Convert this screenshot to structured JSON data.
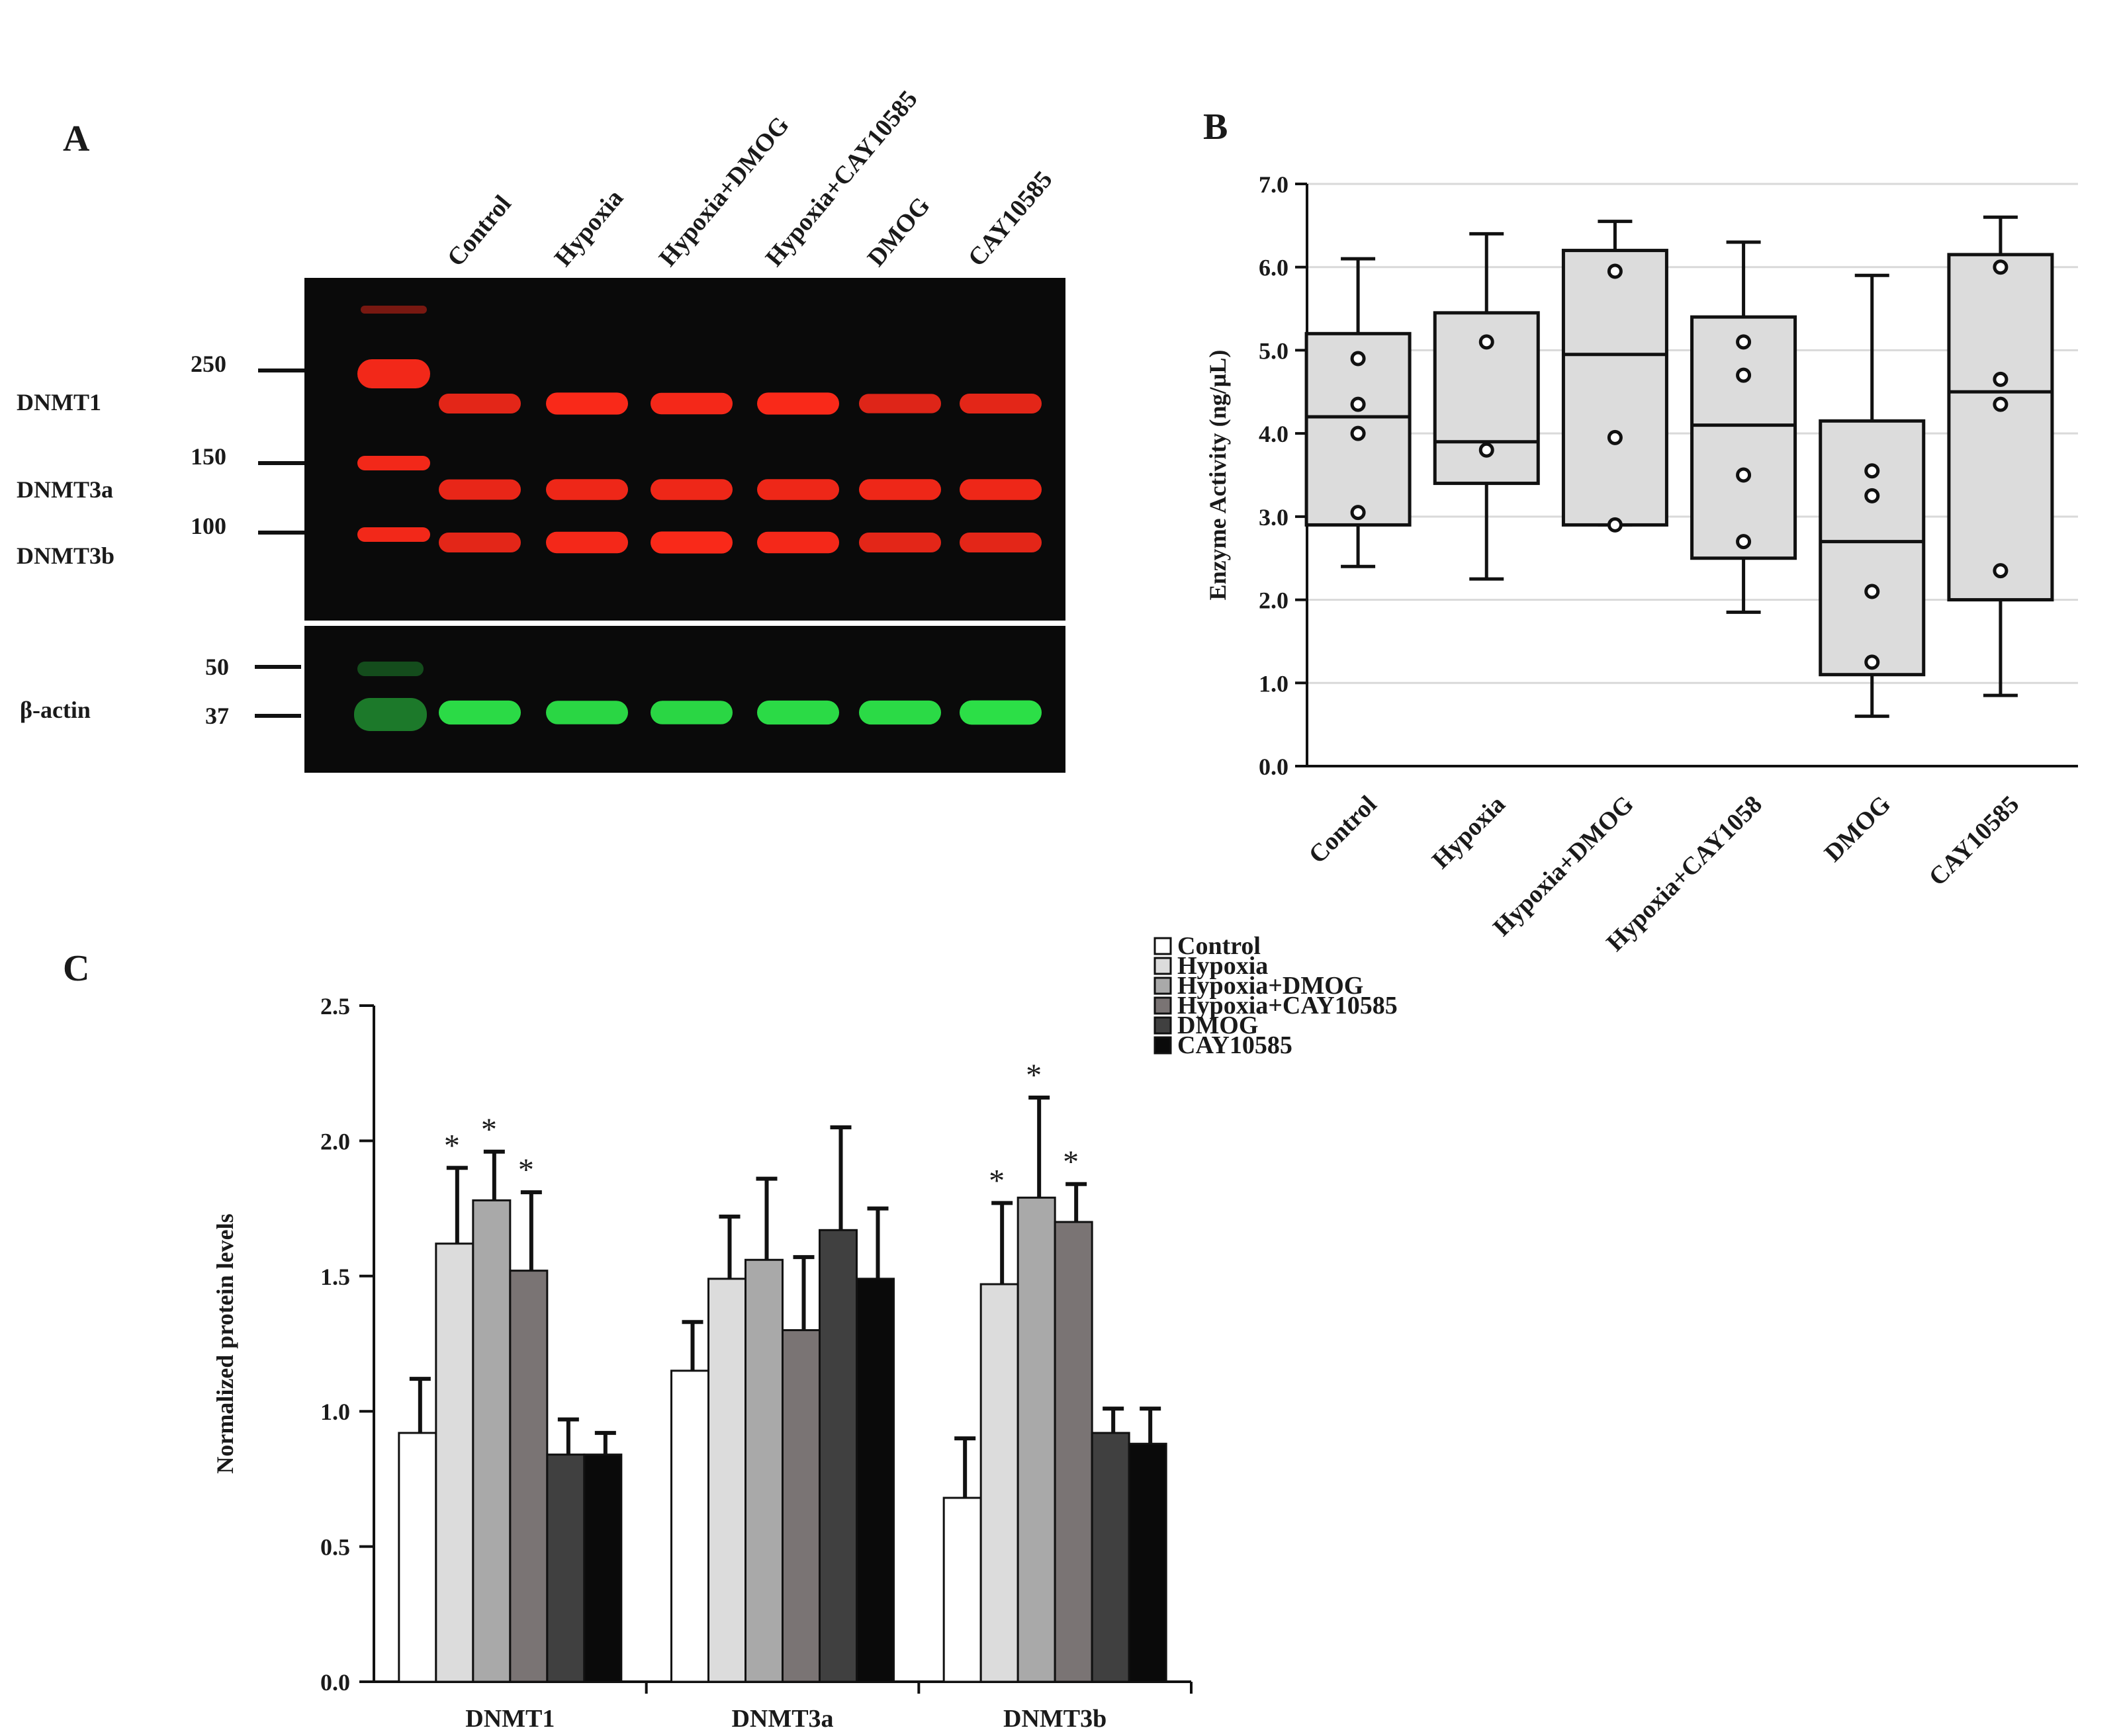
{
  "panels": {
    "a": "A",
    "b": "B",
    "c": "C"
  },
  "western_blot": {
    "lanes": [
      "Control",
      "Hypoxia",
      "Hypoxia+DMOG",
      "Hypoxia+CAY10585",
      "DMOG",
      "CAY10585"
    ],
    "proteins": [
      "DNMT1",
      "DNMT3a",
      "DNMT3b"
    ],
    "loading_control": "β-actin",
    "markers_top": [
      "250",
      "150",
      "100"
    ],
    "markers_bottom": [
      "50",
      "37"
    ],
    "band_intensity_top": [
      [
        0.75,
        0.95,
        0.9,
        0.95,
        0.7,
        0.75
      ],
      [
        0.8,
        0.85,
        0.85,
        0.85,
        0.85,
        0.85
      ],
      [
        0.75,
        0.9,
        0.95,
        0.9,
        0.75,
        0.75
      ]
    ],
    "band_intensity_actin": [
      0.85,
      0.8,
      0.8,
      0.85,
      0.85,
      0.9
    ],
    "colors": {
      "red": "#ff2a1a",
      "green": "#2ee84a",
      "background": "#0a0a0a"
    }
  },
  "chart_data": [
    {
      "type": "box",
      "panel": "B",
      "ylabel": "Enzyme Activity (ng/µL)",
      "ylim": [
        0,
        7
      ],
      "yticks": [
        "0.0",
        "1.0",
        "2.0",
        "3.0",
        "4.0",
        "5.0",
        "6.0",
        "7.0"
      ],
      "grid": true,
      "categories": [
        "Control",
        "Hypoxia",
        "Hypoxia+DMOG",
        "Hypoxia+CAY1058",
        "DMOG",
        "CAY10585"
      ],
      "boxes": [
        {
          "whisker_low": 2.4,
          "q1": 2.9,
          "median": 4.2,
          "q3": 5.2,
          "whisker_high": 6.1,
          "points": [
            4.9,
            4.35,
            4.0,
            3.05
          ]
        },
        {
          "whisker_low": 2.25,
          "q1": 3.4,
          "median": 3.9,
          "q3": 5.45,
          "whisker_high": 6.4,
          "points": [
            5.1,
            3.8
          ]
        },
        {
          "whisker_low": 2.9,
          "q1": 2.9,
          "median": 4.95,
          "q3": 6.2,
          "whisker_high": 6.55,
          "points": [
            5.95,
            3.95,
            2.9
          ]
        },
        {
          "whisker_low": 1.85,
          "q1": 2.5,
          "median": 4.1,
          "q3": 5.4,
          "whisker_high": 6.3,
          "points": [
            5.1,
            4.7,
            3.5,
            2.7
          ]
        },
        {
          "whisker_low": 0.6,
          "q1": 1.1,
          "median": 2.7,
          "q3": 4.15,
          "whisker_high": 5.9,
          "points": [
            3.55,
            3.25,
            2.1,
            1.25
          ]
        },
        {
          "whisker_low": 0.85,
          "q1": 2.0,
          "median": 4.5,
          "q3": 6.15,
          "whisker_high": 6.6,
          "points": [
            6.0,
            4.65,
            4.35,
            2.35
          ]
        }
      ],
      "colors": {
        "box_fill": "#dcdcdc",
        "grid": "#d9d9d9"
      }
    },
    {
      "type": "bar",
      "panel": "C",
      "ylabel": "Normalized protein levels",
      "ylim": [
        0,
        2.5
      ],
      "yticks": [
        "0.0",
        "0.5",
        "1.0",
        "1.5",
        "2.0",
        "2.5"
      ],
      "categories": [
        "DNMT1",
        "DNMT3a",
        "DNMT3b"
      ],
      "series": [
        {
          "name": "Control",
          "color": "#ffffff",
          "values": [
            0.92,
            1.15,
            0.68
          ],
          "errors": [
            0.2,
            0.18,
            0.22
          ]
        },
        {
          "name": "Hypoxia",
          "color": "#dcdcdc",
          "values": [
            1.62,
            1.49,
            1.47
          ],
          "errors": [
            0.28,
            0.23,
            0.3
          ]
        },
        {
          "name": "Hypoxia+DMOG",
          "color": "#a9a9a9",
          "values": [
            1.78,
            1.56,
            1.79
          ],
          "errors": [
            0.18,
            0.3,
            0.37
          ]
        },
        {
          "name": "Hypoxia+CAY10585",
          "color": "#7a7474",
          "values": [
            1.52,
            1.3,
            1.7
          ],
          "errors": [
            0.29,
            0.27,
            0.14
          ]
        },
        {
          "name": "DMOG",
          "color": "#404040",
          "values": [
            0.84,
            1.67,
            0.92
          ],
          "errors": [
            0.13,
            0.38,
            0.09
          ]
        },
        {
          "name": "CAY10585",
          "color": "#0a0a0a",
          "values": [
            0.84,
            1.49,
            0.88
          ],
          "errors": [
            0.08,
            0.26,
            0.13
          ]
        }
      ],
      "significance": [
        {
          "category": 0,
          "series": 1,
          "label": "*"
        },
        {
          "category": 0,
          "series": 2,
          "label": "*"
        },
        {
          "category": 0,
          "series": 3,
          "label": "*"
        },
        {
          "category": 2,
          "series": 1,
          "label": "*"
        },
        {
          "category": 2,
          "series": 2,
          "label": "*"
        },
        {
          "category": 2,
          "series": 3,
          "label": "*"
        }
      ]
    }
  ]
}
